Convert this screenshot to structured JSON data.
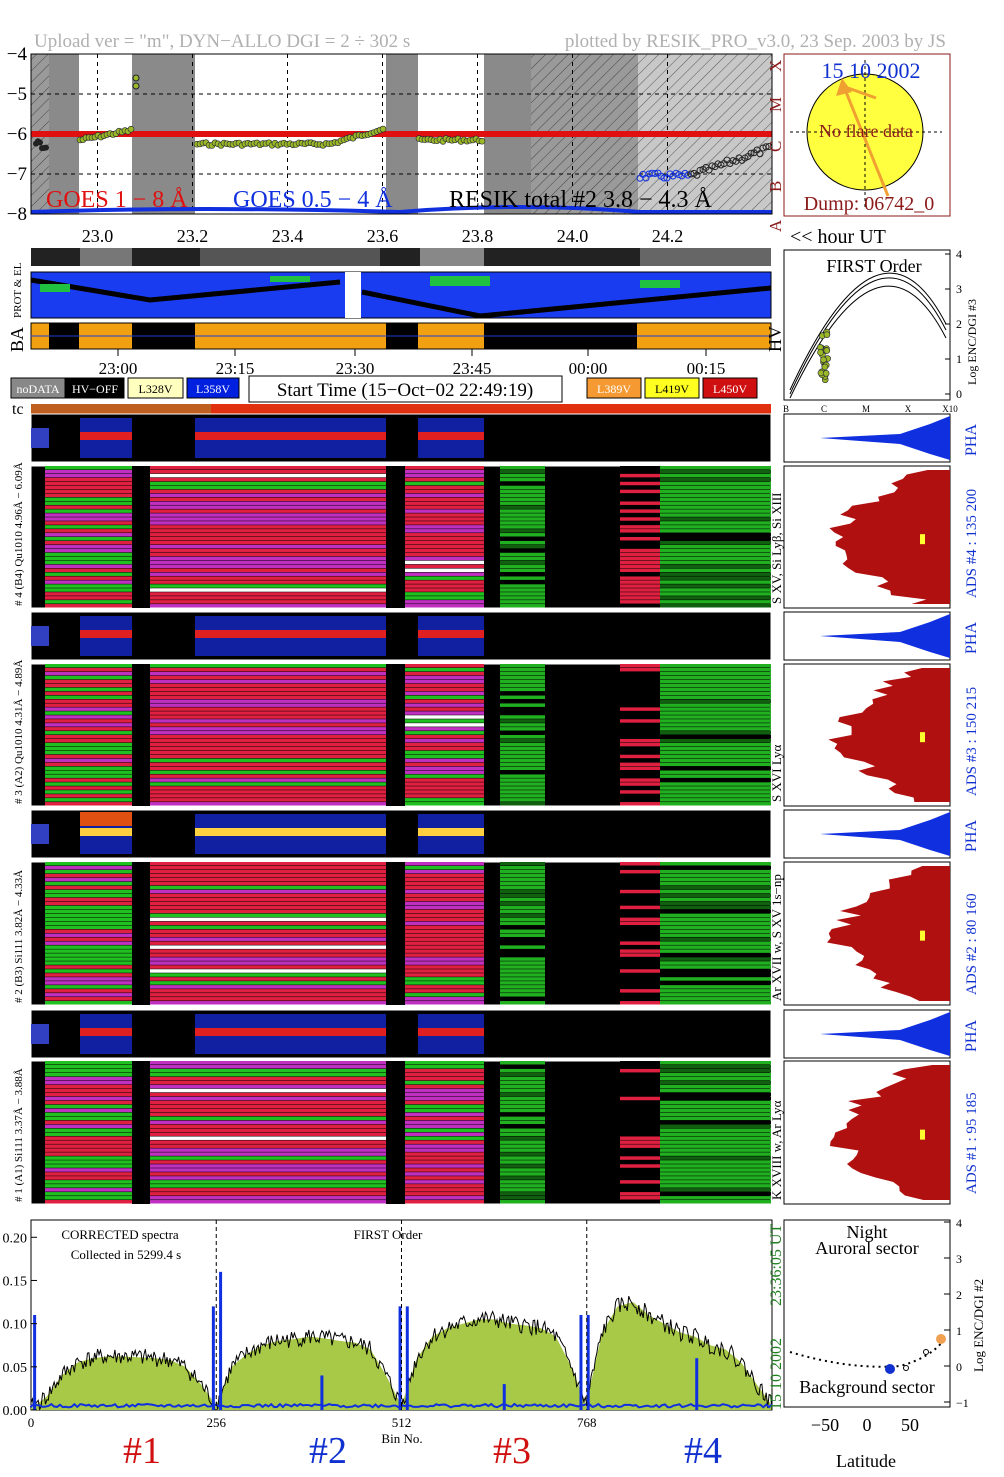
{
  "header": {
    "left": "Upload ver = \"m\", DYN−ALLO DGI =   2 ÷ 302 s",
    "right": "plotted by RESIK_PRO_v3.0, 23 Sep. 2003 by JS"
  },
  "goes_panel": {
    "ylim": [
      -8,
      -4
    ],
    "yticks": [
      "−4",
      "−5",
      "−6",
      "−7",
      "−8"
    ],
    "xticks": [
      "23.0",
      "23.2",
      "23.4",
      "23.6",
      "23.8",
      "24.0",
      "24.2"
    ],
    "class_labels": [
      "X",
      "M",
      "C",
      "B",
      "A"
    ],
    "legend_goes18": "GOES 1 − 8 Å",
    "legend_goes054": "GOES 0.5 − 4 Å",
    "legend_resik": "RESIK total #2  3.8 − 4.3 Å",
    "hour_label": "<< hour UT"
  },
  "sun_panel": {
    "date": "15 10 2002",
    "text": "No flare data",
    "dump": "Dump: 06742_0"
  },
  "status_panel": {
    "label_prot": "PROT & EL",
    "label_ba": "BA",
    "label_hv": "HV",
    "time_ticks": [
      "23:00",
      "23:15",
      "23:30",
      "23:45",
      "00:00",
      "00:15"
    ],
    "legend_left": [
      {
        "text": "noDATA",
        "bg": "#888888",
        "fg": "#ffffff"
      },
      {
        "text": "HV−OFF",
        "bg": "#000000",
        "fg": "#ffffff"
      },
      {
        "text": "L328V",
        "bg": "#ffffc0",
        "fg": "#000000"
      },
      {
        "text": "L358V",
        "bg": "#0020e0",
        "fg": "#ffffff"
      }
    ],
    "start_time": "Start Time (15−Oct−02 22:49:19)",
    "legend_right": [
      {
        "text": "L389V",
        "bg": "#f59a32",
        "fg": "#ffffff"
      },
      {
        "text": "L419V",
        "bg": "#ffff20",
        "fg": "#000000"
      },
      {
        "text": "L450V",
        "bg": "#d01010",
        "fg": "#ffffff"
      }
    ],
    "tc": "tc"
  },
  "first_order_panel": {
    "title": "FIRST Order",
    "ylabel": "Log ENC/DGI #3",
    "yticks": [
      "4",
      "3",
      "2",
      "1",
      "0"
    ],
    "xticks": [
      "B",
      "C",
      "M",
      "X",
      "X10"
    ]
  },
  "channels": [
    {
      "pha_label": "# 4 (B4)  Qu1010  4.96Å − 6.09Å",
      "lines": "S XV, Si Lyβ, Si XIII",
      "ads": "ADS #4 :  135 200",
      "pha": "PHA"
    },
    {
      "pha_label": "# 3 (A2)  Qu1010  4.31Å − 4.89Å",
      "lines": "S XVI Lyα",
      "ads": "ADS #3 :  150 215",
      "pha": "PHA"
    },
    {
      "pha_label": "# 2 (B3)  Si111  3.82Å − 4.33Å",
      "lines": "Ar XVII w, S XV 1s−np",
      "ads": "ADS #2 :  80 160",
      "pha": "PHA"
    },
    {
      "pha_label": "# 1 (A1)  Si111  3.37Å − 3.88Å",
      "lines": "K XVIII w, Ar Lyα",
      "ads": "ADS #1 :  95 185",
      "pha": "PHA"
    }
  ],
  "spectra_panel": {
    "title": "FIRST Order",
    "note1": "CORRECTED spectra",
    "note2": "Collected in  5299.4 s",
    "time": "23:36:05 UT",
    "date": "15 10 2002",
    "xlabel": "Bin No.",
    "xticks": [
      "0",
      "256",
      "512",
      "768"
    ],
    "yticks": [
      "0.20",
      "0.15",
      "0.10",
      "0.05",
      "0.00"
    ],
    "channel_labels": [
      {
        "text": "#1",
        "color": "#d01010"
      },
      {
        "text": "#2",
        "color": "#1030d0"
      },
      {
        "text": "#3",
        "color": "#d01010"
      },
      {
        "text": "#4",
        "color": "#1030d0"
      }
    ]
  },
  "orbit_panel": {
    "title1": "Night",
    "title2": "Auroral sector",
    "bottom": "Background sector",
    "ylabel": "Log ENC/DGI #2",
    "yticks": [
      "4",
      "3",
      "2",
      "1",
      "0",
      "−1"
    ],
    "xticks": [
      "−50",
      "0",
      "50"
    ],
    "xlabel": "Latitude"
  },
  "chart_data": {
    "type": "line",
    "title": "",
    "xlabel": "Bin No.",
    "ylabel": "",
    "xlim": [
      0,
      1024
    ],
    "ylim": [
      0,
      0.22
    ],
    "channel_starts": [
      0,
      256,
      512,
      768
    ],
    "series": [
      {
        "color": "#000000",
        "values": [
          0.002,
          0.015,
          0.04,
          0.055,
          0.06,
          0.062,
          0.062,
          0.061,
          0.06,
          0.058,
          0.05,
          0.03,
          0.005
        ]
      },
      {
        "color": "#000000",
        "values": [
          0.005,
          0.05,
          0.065,
          0.075,
          0.08,
          0.082,
          0.085,
          0.083,
          0.08,
          0.078,
          0.07,
          0.04,
          0.005
        ]
      },
      {
        "color": "#000000",
        "values": [
          0.005,
          0.06,
          0.085,
          0.095,
          0.1,
          0.105,
          0.105,
          0.1,
          0.098,
          0.095,
          0.085,
          0.05,
          0.005
        ]
      },
      {
        "color": "#000000",
        "values": [
          0.01,
          0.09,
          0.12,
          0.125,
          0.11,
          0.1,
          0.09,
          0.085,
          0.075,
          0.07,
          0.055,
          0.03,
          0.005
        ]
      }
    ],
    "blue_peaks_x": [
      5,
      252,
      262,
      402,
      510,
      520,
      654,
      760,
      770,
      920
    ],
    "blue_peaks_y": [
      0.11,
      0.12,
      0.16,
      0.04,
      0.12,
      0.12,
      0.03,
      0.11,
      0.11,
      0.06
    ]
  }
}
